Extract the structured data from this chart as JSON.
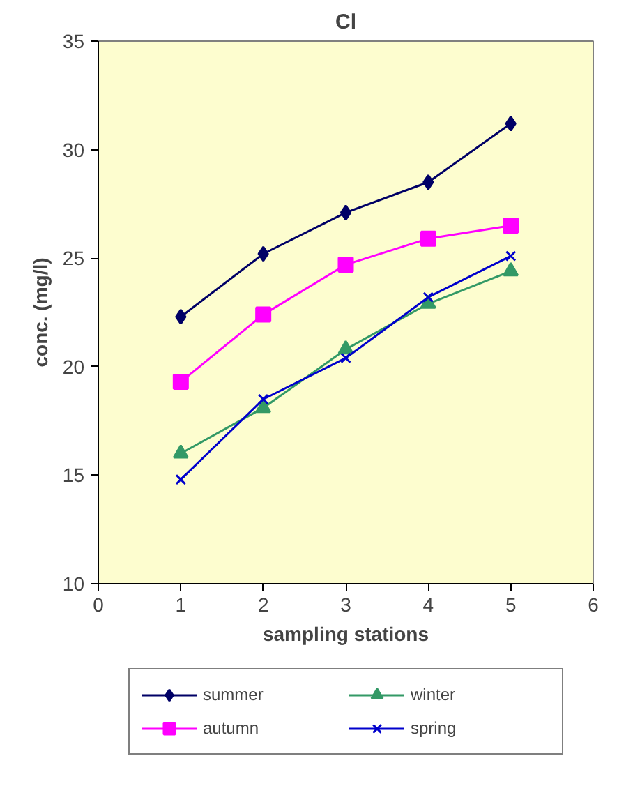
{
  "chart_data": {
    "type": "line",
    "title": "Cl",
    "xlabel": "sampling stations",
    "ylabel": "conc. (mg/l)",
    "x": [
      1,
      2,
      3,
      4,
      5
    ],
    "series": [
      {
        "name": "summer",
        "color": "#000066",
        "marker": "diamond",
        "values": [
          22.3,
          25.2,
          27.1,
          28.5,
          31.2
        ]
      },
      {
        "name": "autumn",
        "color": "#ff00ff",
        "marker": "square",
        "values": [
          19.3,
          22.4,
          24.7,
          25.9,
          26.5
        ]
      },
      {
        "name": "winter",
        "color": "#339966",
        "marker": "triangle",
        "values": [
          16.0,
          18.1,
          20.8,
          22.9,
          24.4
        ]
      },
      {
        "name": "spring",
        "color": "#0000cc",
        "marker": "cross",
        "values": [
          14.8,
          18.5,
          20.4,
          23.2,
          25.1
        ]
      }
    ],
    "xlim": [
      0,
      6
    ],
    "xticks": [
      0,
      1,
      2,
      3,
      4,
      5,
      6
    ],
    "ylim": [
      10,
      35
    ],
    "yticks": [
      10,
      15,
      20,
      25,
      30,
      35
    ],
    "grid": false,
    "legend": "bottom",
    "line_style": "solid"
  }
}
